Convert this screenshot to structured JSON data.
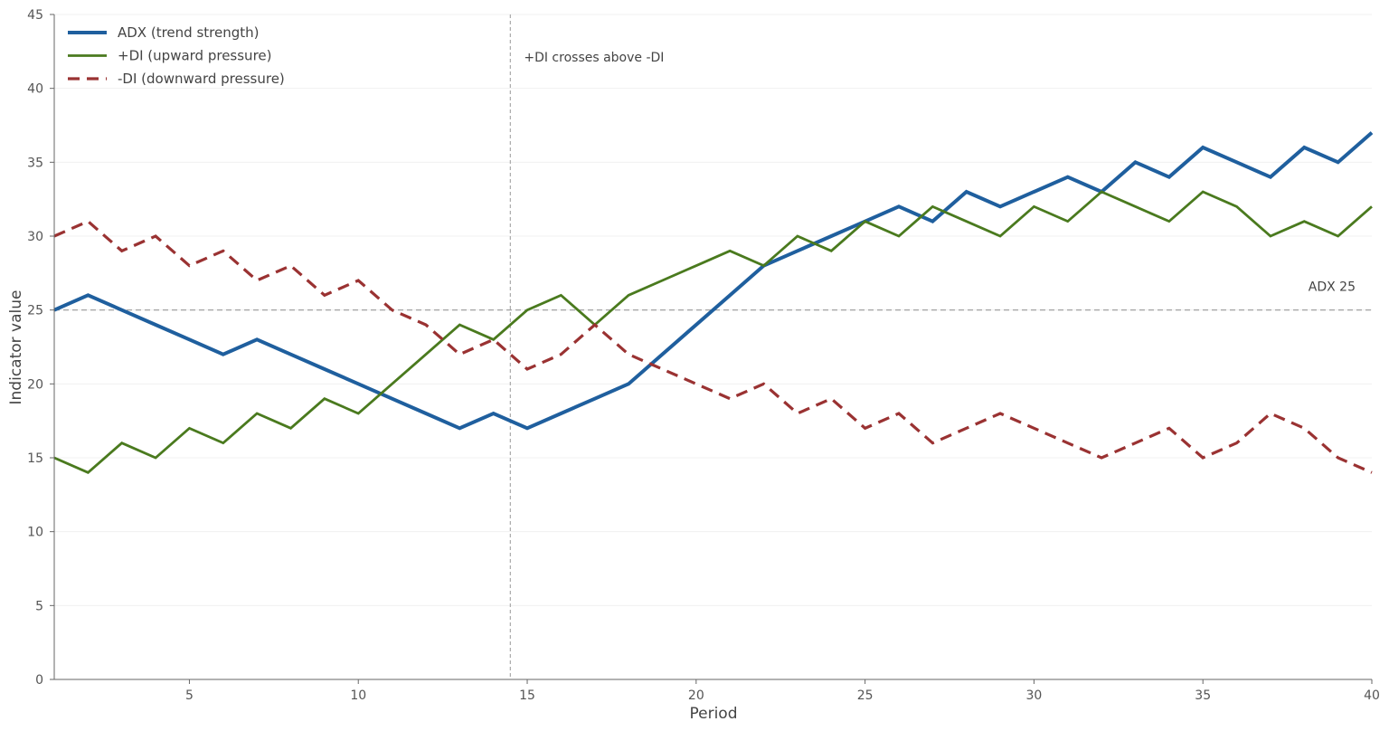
{
  "chart_data": {
    "type": "line",
    "xlabel": "Period",
    "ylabel": "Indicator value",
    "xlim": [
      1,
      40
    ],
    "ylim": [
      0,
      45
    ],
    "xticks": [
      5,
      10,
      15,
      20,
      25,
      30,
      35,
      40
    ],
    "yticks": [
      0,
      5,
      10,
      15,
      20,
      25,
      30,
      35,
      40,
      45
    ],
    "grid": "horizontal",
    "legend": "top-left",
    "x": [
      1,
      2,
      3,
      4,
      5,
      6,
      7,
      8,
      9,
      10,
      11,
      12,
      13,
      14,
      15,
      16,
      17,
      18,
      19,
      20,
      21,
      22,
      23,
      24,
      25,
      26,
      27,
      28,
      29,
      30,
      31,
      32,
      33,
      34,
      35,
      36,
      37,
      38,
      39,
      40
    ],
    "series": [
      {
        "name": "ADX (trend strength)",
        "color": "#1f5f9e",
        "style": "solid",
        "values": [
          25,
          26,
          25,
          24,
          23,
          22,
          23,
          22,
          21,
          20,
          19,
          18,
          17,
          18,
          17,
          18,
          19,
          20,
          22,
          24,
          26,
          28,
          29,
          30,
          31,
          32,
          31,
          33,
          32,
          33,
          34,
          33,
          35,
          34,
          36,
          35,
          34,
          36,
          35,
          37
        ]
      },
      {
        "name": "+DI (upward pressure)",
        "color": "#4a7a1e",
        "style": "solid",
        "values": [
          15,
          14,
          16,
          15,
          17,
          16,
          18,
          17,
          19,
          18,
          20,
          22,
          24,
          23,
          25,
          26,
          24,
          26,
          27,
          28,
          29,
          28,
          30,
          29,
          31,
          30,
          32,
          31,
          30,
          32,
          31,
          33,
          32,
          31,
          33,
          32,
          30,
          31,
          30,
          32
        ]
      },
      {
        "name": "-DI (downward pressure)",
        "color": "#9a3232",
        "style": "dashed",
        "values": [
          30,
          31,
          29,
          30,
          28,
          29,
          27,
          28,
          26,
          27,
          25,
          24,
          22,
          23,
          21,
          22,
          24,
          22,
          21,
          20,
          19,
          20,
          18,
          19,
          17,
          18,
          16,
          17,
          18,
          17,
          16,
          15,
          16,
          17,
          15,
          16,
          18,
          17,
          15,
          14
        ]
      }
    ],
    "reference_lines": [
      {
        "axis": "y",
        "value": 25,
        "label": "ADX 25"
      },
      {
        "axis": "x",
        "value": 14.5,
        "label": "+DI crosses above -DI"
      }
    ]
  }
}
